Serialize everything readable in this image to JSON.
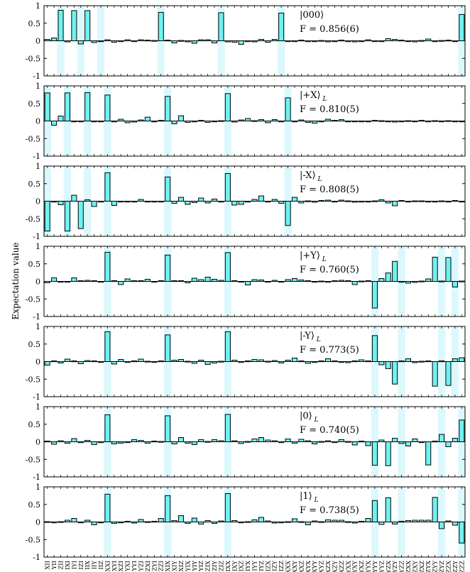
{
  "ylabel": "Expectation value",
  "categories": [
    "XII",
    "YII",
    "ZII",
    "IXI",
    "IYI",
    "IZI",
    "IIX",
    "IIY",
    "IIZ",
    "XXI",
    "XYI",
    "XZI",
    "YXI",
    "YYI",
    "YZI",
    "ZXI",
    "ZYI",
    "ZZI",
    "XIX",
    "XIY",
    "XIZ",
    "YIX",
    "YIY",
    "YIZ",
    "ZIX",
    "ZIY",
    "ZIZ",
    "IXX",
    "IXY",
    "IXZ",
    "IYX",
    "IYY",
    "IYZ",
    "IZX",
    "IZY",
    "IZZ",
    "XXX",
    "XXY",
    "XXZ",
    "XYX",
    "XYY",
    "XYZ",
    "XZX",
    "XZY",
    "XZZ",
    "YXX",
    "YXY",
    "YXZ",
    "YYX",
    "YYY",
    "YYZ",
    "YZX",
    "YZY",
    "YZZ",
    "ZXX",
    "ZXY",
    "ZXZ",
    "ZYX",
    "ZYY",
    "ZYZ",
    "ZZX",
    "ZZY",
    "ZZZ"
  ],
  "yticks": [
    1,
    0.5,
    0,
    -0.5,
    -1
  ],
  "ytick_labels": [
    "1",
    "0.5",
    "0",
    "-0.5",
    "-1"
  ],
  "chart_data": [
    {
      "type": "bar",
      "state_label": "|000⟩",
      "fidelity_label": "F = 0.856(6)",
      "ylim": [
        -1,
        1
      ],
      "ideal_nonzero_indices": [
        2,
        5,
        8,
        17,
        26,
        35,
        62
      ],
      "values": [
        0.04,
        0.08,
        0.87,
        -0.03,
        0.86,
        -0.09,
        0.86,
        -0.05,
        0,
        0.03,
        -0.04,
        0,
        0.03,
        0,
        0.03,
        0.02,
        0.01,
        0.81,
        0.02,
        -0.06,
        0.01,
        -0.03,
        -0.07,
        0.03,
        0.03,
        -0.06,
        0.8,
        -0.03,
        -0.04,
        -0.1,
        0,
        -0.03,
        0.04,
        -0.04,
        0.04,
        0.79,
        -0.02,
        -0.02,
        0.02,
        -0.02,
        0,
        0.01,
        -0.03,
        -0.02,
        0.02,
        0,
        -0.03,
        0,
        0.03,
        -0.02,
        0,
        0.06,
        0.04,
        0.02,
        -0.02,
        -0.03,
        0.01,
        0.05,
        -0.01,
        0.01,
        0.02,
        -0.02,
        0.75
      ]
    },
    {
      "type": "bar",
      "state_label": "|+X⟩",
      "state_sub": "L",
      "fidelity_label": "F = 0.810(5)",
      "ylim": [
        -1,
        1
      ],
      "ideal_nonzero_indices": [
        0,
        3,
        6,
        9,
        18,
        27,
        36
      ],
      "values": [
        0.8,
        -0.12,
        0.14,
        0.8,
        0,
        -0.02,
        0.81,
        -0.02,
        0,
        0.74,
        -0.02,
        0.05,
        -0.05,
        -0.03,
        0.03,
        0.11,
        -0.02,
        0.02,
        0.7,
        -0.08,
        0.15,
        -0.04,
        -0.02,
        0.02,
        -0.04,
        -0.02,
        0.01,
        0.78,
        -0.03,
        0.03,
        0.07,
        0.01,
        0.04,
        -0.05,
        0.04,
        -0.02,
        0.66,
        0,
        0.03,
        -0.04,
        -0.06,
        -0.01,
        0.05,
        0.02,
        0.04,
        -0.01,
        -0.02,
        0,
        -0.02,
        0.02,
        0.01,
        -0.02,
        -0.03,
        0,
        0.01,
        0,
        0.02,
        0,
        0.01,
        0,
        0.01,
        0,
        0
      ]
    },
    {
      "type": "bar",
      "state_label": "|-X⟩",
      "state_sub": "L",
      "fidelity_label": "F = 0.808(5)",
      "ylim": [
        -1,
        1
      ],
      "ideal_nonzero_indices": [
        0,
        3,
        6,
        9,
        18,
        27,
        36
      ],
      "values": [
        -0.85,
        0,
        -0.1,
        -0.85,
        0.17,
        -0.78,
        0.04,
        -0.15,
        0,
        0.81,
        -0.12,
        0,
        -0.02,
        0,
        0.05,
        -0.02,
        -0.02,
        -0.02,
        0.69,
        -0.06,
        0.11,
        -0.09,
        -0.04,
        0.09,
        -0.05,
        0.06,
        0,
        0.79,
        -0.11,
        -0.09,
        -0.02,
        0.05,
        0.15,
        -0.02,
        0.05,
        -0.06,
        -0.69,
        0.11,
        -0.05,
        0.01,
        -0.03,
        0.02,
        0.03,
        0,
        0.03,
        0.01,
        -0.03,
        0,
        -0.02,
        0.01,
        0.04,
        -0.05,
        -0.13,
        0.02,
        0,
        0.01,
        0.01,
        0,
        0,
        0.01,
        0,
        0.02,
        0
      ]
    },
    {
      "type": "bar",
      "state_label": "|+Y⟩",
      "state_sub": "L",
      "fidelity_label": "F = 0.760(5)",
      "ylim": [
        -1,
        1
      ],
      "ideal_nonzero_indices": [
        9,
        18,
        27,
        49,
        53,
        59,
        61
      ],
      "values": [
        -0.04,
        0.1,
        0,
        0,
        0.1,
        0.02,
        0.03,
        0.02,
        0,
        0.83,
        0.02,
        -0.09,
        0.07,
        0.02,
        0.02,
        0.06,
        0,
        0.02,
        0.75,
        0.02,
        0.02,
        -0.04,
        0.09,
        0.05,
        0.12,
        0.06,
        0.03,
        0.82,
        0.02,
        -0.02,
        -0.1,
        0.05,
        0.04,
        -0.02,
        0.03,
        0,
        0.05,
        0.08,
        0.04,
        0.02,
        0,
        0.01,
        -0.02,
        0.02,
        0.03,
        0.02,
        -0.09,
        0.01,
        0.02,
        -0.76,
        0.08,
        0.24,
        0.57,
        0,
        -0.05,
        -0.03,
        0.01,
        0.07,
        0.69,
        0.01,
        0.68,
        -0.16,
        0.01
      ]
    },
    {
      "type": "bar",
      "state_label": "|-Y⟩",
      "state_sub": "L",
      "fidelity_label": "F = 0.773(5)",
      "ylim": [
        -1,
        1
      ],
      "ideal_nonzero_indices": [
        9,
        18,
        27,
        49,
        53,
        59,
        61
      ],
      "values": [
        -0.1,
        0.02,
        -0.04,
        0.07,
        0.02,
        -0.06,
        0.03,
        0.02,
        0,
        0.85,
        -0.07,
        0.06,
        -0.02,
        0.02,
        0.07,
        0.01,
        -0.02,
        0.02,
        0.76,
        0.04,
        0.06,
        0.01,
        -0.05,
        0.04,
        -0.08,
        -0.04,
        0.01,
        0.85,
        0.04,
        -0.02,
        0.02,
        0.06,
        0.05,
        0.01,
        0.03,
        -0.04,
        0.04,
        0.1,
        0.02,
        -0.05,
        0,
        0.02,
        0.08,
        0.02,
        -0.02,
        -0.03,
        0.02,
        0.05,
        0.02,
        0.74,
        -0.09,
        -0.2,
        -0.64,
        0.02,
        0.08,
        -0.03,
        0.01,
        0.02,
        -0.7,
        0.02,
        -0.68,
        0.08,
        0.11
      ]
    },
    {
      "type": "bar",
      "state_label": "|0⟩",
      "state_sub": "L",
      "fidelity_label": "F = 0.740(5)",
      "ylim": [
        -1,
        1
      ],
      "ideal_nonzero_indices": [
        9,
        18,
        27,
        49,
        53,
        59,
        62
      ],
      "values": [
        0.02,
        -0.07,
        0.03,
        -0.04,
        0.09,
        -0.02,
        0.04,
        -0.08,
        0,
        0.77,
        -0.06,
        -0.04,
        -0.02,
        0.06,
        0.04,
        -0.04,
        0.02,
        0.01,
        0.74,
        -0.06,
        0.12,
        -0.04,
        -0.08,
        0.06,
        0.01,
        0.06,
        0.03,
        0.78,
        0.03,
        -0.05,
        0.01,
        0.08,
        0.12,
        0.05,
        0.03,
        -0.02,
        0.08,
        -0.04,
        0.07,
        0.03,
        -0.06,
        0.01,
        0.03,
        -0.02,
        0.06,
        0.01,
        -0.09,
        0.02,
        -0.11,
        -0.67,
        0.05,
        -0.68,
        0.1,
        -0.05,
        -0.12,
        0.08,
        -0.02,
        -0.66,
        0.02,
        0.21,
        -0.14,
        0.1,
        0.62
      ]
    },
    {
      "type": "bar",
      "state_label": "|1⟩",
      "state_sub": "L",
      "fidelity_label": "F = 0.738(5)",
      "ylim": [
        -1,
        1
      ],
      "ideal_nonzero_indices": [
        9,
        18,
        27,
        49,
        53,
        59,
        62
      ],
      "values": [
        0.01,
        0,
        0.01,
        0.05,
        0.1,
        0,
        0.05,
        -0.08,
        0,
        0.79,
        -0.04,
        0,
        0.02,
        -0.03,
        0.07,
        0.01,
        0.02,
        0.1,
        0.75,
        0.04,
        0.18,
        -0.04,
        0.11,
        -0.06,
        0.04,
        -0.04,
        0.03,
        0.81,
        0.04,
        -0.02,
        0.01,
        0.06,
        0.13,
        0.03,
        -0.03,
        0,
        0.01,
        0.09,
        0.01,
        -0.08,
        0.03,
        0.01,
        0.06,
        0.05,
        0.05,
        0.01,
        -0.03,
        0.02,
        0.1,
        0.61,
        -0.07,
        0.69,
        -0.06,
        0.02,
        0.04,
        0.05,
        0.05,
        0.05,
        0.7,
        -0.19,
        0.03,
        -0.09,
        -0.6
      ]
    }
  ]
}
